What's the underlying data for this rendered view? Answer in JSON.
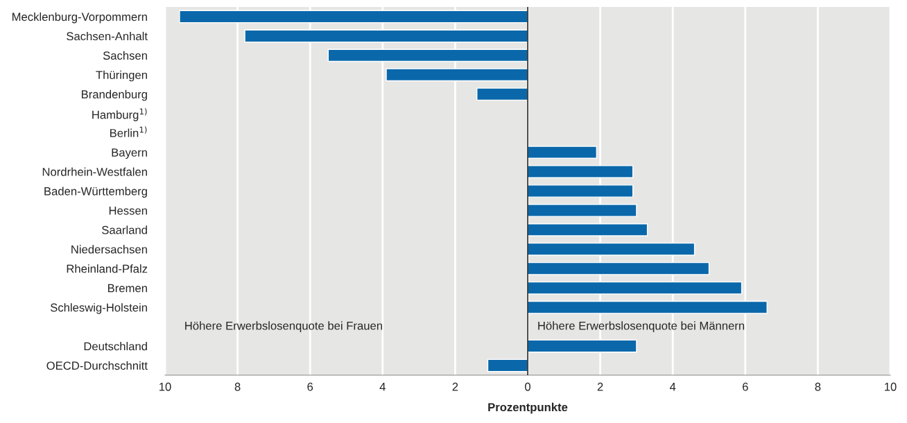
{
  "chart_data": {
    "type": "bar",
    "orientation": "horizontal",
    "xlabel": "Prozentpunkte",
    "categories": [
      "Mecklenburg-Vorpommern",
      "Sachsen-Anhalt",
      "Sachsen",
      "Thüringen",
      "Brandenburg",
      "Hamburg$^{1)}$",
      "Berlin$^{1)}$",
      "Bayern",
      "Nordrhein-Westfalen",
      "Baden-Württemberg",
      "Hessen",
      "Saarland",
      "Niedersachsen",
      "Rheinland-Pfalz",
      "Bremen",
      "Schleswig-Holstein",
      null,
      "Deutschland",
      "OECD-Durchschnitt"
    ],
    "values": [
      -9.6,
      -7.8,
      -5.5,
      -3.9,
      -1.4,
      null,
      null,
      1.9,
      2.9,
      2.9,
      3.0,
      3.3,
      4.6,
      5.0,
      5.9,
      6.6,
      null,
      3.0,
      -1.1
    ],
    "color": "#0a68aa",
    "xlim": [
      -10,
      10
    ],
    "xticks": [
      {
        "value": -10,
        "label": "10"
      },
      {
        "value": -8,
        "label": "8"
      },
      {
        "value": -6,
        "label": "6"
      },
      {
        "value": -4,
        "label": "4"
      },
      {
        "value": -2,
        "label": "2"
      },
      0,
      2,
      4,
      6,
      8,
      10
    ],
    "grid": "x",
    "ref_lines": [
      {
        "axis": "x",
        "value": 0,
        "color": "#000000"
      }
    ],
    "annotations": [
      "Höhere Erwerbslosenquote bei Frauen",
      "Höhere Erwerbslosenquote bei Männern"
    ]
  }
}
